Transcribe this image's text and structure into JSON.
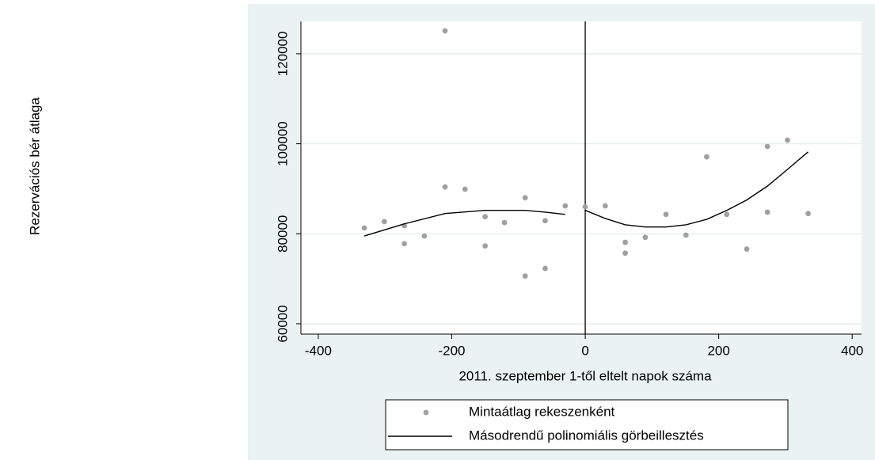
{
  "chart_data": {
    "type": "scatter",
    "x_label": "2011. szeptember 1-től eltelt napok száma",
    "y_label": "Rezervációs bér átlaga",
    "xlim": [
      -426,
      414
    ],
    "xticks": [
      -400,
      -200,
      0,
      200,
      400
    ],
    "ylim": [
      57700,
      127200
    ],
    "yticks": [
      60000,
      80000,
      100000,
      120000
    ],
    "grid": true,
    "xline": 0,
    "series": [
      {
        "name": "Mintaátlag rekeszenként",
        "type": "scatter",
        "color": "#a0a0a0",
        "x": [
          -331,
          -301,
          -271,
          -271,
          -241,
          -210,
          -210,
          -180,
          -150,
          -150,
          -121,
          -90,
          -90,
          -60,
          -60,
          -30,
          0,
          30,
          60,
          60,
          90,
          121,
          151,
          182,
          212,
          242,
          273,
          273,
          303,
          334
        ],
        "values": [
          81300,
          82700,
          81800,
          77800,
          79500,
          90400,
          125100,
          89900,
          83800,
          77300,
          82500,
          88000,
          70600,
          82900,
          72300,
          86200,
          86000,
          86200,
          78100,
          75700,
          79200,
          84300,
          79700,
          97100,
          84300,
          76600,
          99400,
          84800,
          100800,
          84500
        ]
      },
      {
        "name": "Másodrendű polinomiális görbeillesztés",
        "type": "line",
        "color": "#000000",
        "x": [
          -331,
          -271,
          -210,
          -150,
          -90,
          -60,
          -30,
          null,
          0,
          30,
          60,
          90,
          121,
          151,
          182,
          212,
          242,
          273,
          303,
          334
        ],
        "values": [
          79500,
          82200,
          84500,
          85200,
          85200,
          84800,
          84300,
          null,
          85200,
          83400,
          82000,
          81500,
          81500,
          82000,
          83200,
          85200,
          87500,
          90600,
          94300,
          98200
        ]
      }
    ]
  }
}
